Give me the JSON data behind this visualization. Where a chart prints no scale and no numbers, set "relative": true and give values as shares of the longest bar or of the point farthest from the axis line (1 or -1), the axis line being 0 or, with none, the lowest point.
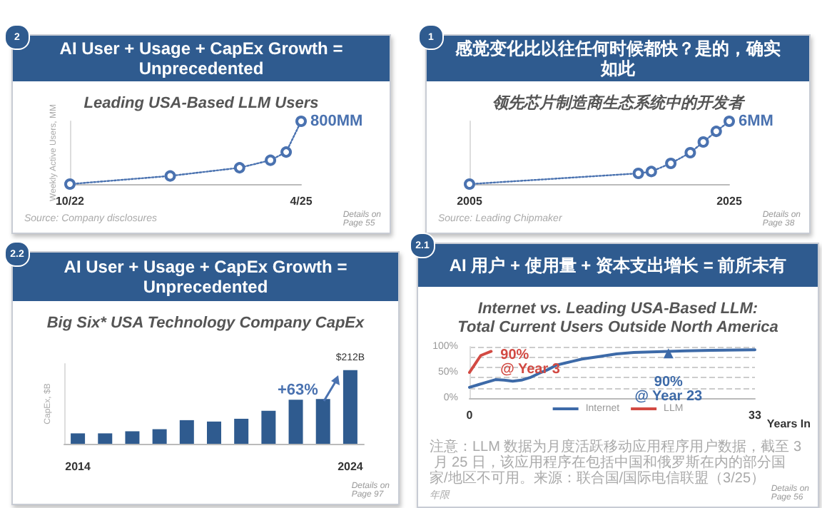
{
  "chart_data": [
    {
      "type": "line",
      "title": "AI User + Usage + CapEx Growth = Unprecedented",
      "subtitle": "Leading USA-Based LLM Users",
      "ylabel": "Weekly Active Users, MM",
      "relative": true,
      "x": [
        "2022-10",
        "2023-11",
        "2024-08",
        "2024-12",
        "2025-02",
        "2025-04"
      ],
      "values": [
        0,
        0.13,
        0.26,
        0.38,
        0.51,
        1
      ],
      "color": "#4a72b0",
      "xlim": [
        "2022-10",
        "2025-04"
      ],
      "xticks": [
        {
          "value": "2022-10",
          "label": "10/22"
        },
        {
          "value": "2025-04",
          "label": "4/25"
        }
      ],
      "marker": "circle",
      "line_style": "dotted",
      "annotations": [
        "2",
        "Details on\nPage 55",
        "Source: Company disclosures",
        {
          "text": "800MM",
          "x": "2025-04",
          "y": 1
        }
      ]
    },
    {
      "type": "line",
      "title": "感觉变化比以往任何时候都快？是的，确实如此",
      "subtitle": "领先芯片制造商生态系统中的开发者",
      "relative": true,
      "x": [
        2005,
        2018,
        2019,
        2020.5,
        2022,
        2023,
        2024,
        2025
      ],
      "values": [
        0,
        0.17,
        0.2,
        0.33,
        0.5,
        0.67,
        0.84,
        1
      ],
      "color": "#4a72b0",
      "xlim": [
        2005,
        2025
      ],
      "xticks": [
        2005,
        2025
      ],
      "marker": "circle",
      "line_style": "dotted",
      "annotations": [
        "1",
        "Details on\nPage 38",
        "Source: Leading Chipmaker",
        {
          "text": "6MM",
          "x": 2025,
          "y": 1
        }
      ]
    },
    {
      "type": "bar",
      "title": "AI User + Usage + CapEx Growth = Unprecedented",
      "subtitle": "Big Six* USA Technology Company CapEx",
      "ylabel": "CapEx, $B",
      "ylim": [
        0,
        230
      ],
      "tick_labels": "x",
      "categories": [
        "2014",
        null,
        null,
        null,
        null,
        null,
        null,
        null,
        null,
        null,
        "2024"
      ],
      "values": [
        30,
        30,
        36,
        42,
        68,
        64,
        72,
        95,
        127,
        129,
        212
      ],
      "value_labels": [
        null,
        null,
        null,
        null,
        null,
        null,
        null,
        null,
        null,
        null,
        "$212B"
      ],
      "color": "#2f5b8f",
      "annotations": [
        "2.2",
        "Details on\nPage 97",
        {
          "text": "+63%",
          "x": "2024",
          "y": 170
        }
      ]
    },
    {
      "type": "line",
      "title": "AI 用户 + 使用量 + 资本支出增长 = 前所未有",
      "subtitle": "Internet vs. Leading USA-Based LLM:\nTotal Current Users Outside North America",
      "xlabel": "Years In",
      "xlim": [
        0,
        33
      ],
      "xticks": [
        0,
        33
      ],
      "ylim": [
        0,
        100
      ],
      "yticks": [
        {
          "value": 0,
          "label": "0%"
        },
        {
          "value": 50,
          "label": "50%"
        },
        {
          "value": 100,
          "label": "100%"
        }
      ],
      "grid": "y",
      "legend": "bottom",
      "series": [
        {
          "name": "Internet",
          "color": "#3d6aa8",
          "x": [
            0,
            1,
            2,
            3,
            4,
            5,
            6,
            7,
            8,
            9,
            10,
            11,
            12,
            13,
            15,
            17,
            19,
            21,
            23,
            25,
            28,
            33
          ],
          "values": [
            21,
            26,
            31,
            36,
            35,
            33,
            35,
            40,
            48,
            55,
            64,
            68,
            72,
            76,
            81,
            86,
            89,
            90,
            91,
            92,
            93,
            94
          ]
        },
        {
          "name": "LLM",
          "color": "#d24a43",
          "x": [
            0,
            1.3,
            2.5
          ],
          "values": [
            50,
            83,
            91
          ]
        }
      ],
      "annotations": [
        "2.1",
        "Details on\nPage 56",
        "注意：LLM 数据为月度活跃移动应用程序用户数据，截至 3 月 25 日，该应用程序在包括中国和俄罗斯在内的部分国家/地区不可用。来源：联合国/国际电信联盟（3/25）",
        "年限",
        {
          "text": "90%\n@ Year 3",
          "x": 2.5,
          "y": 91
        },
        {
          "text": "90%\n@ Year 23",
          "x": 23,
          "y": 87
        }
      ]
    }
  ]
}
